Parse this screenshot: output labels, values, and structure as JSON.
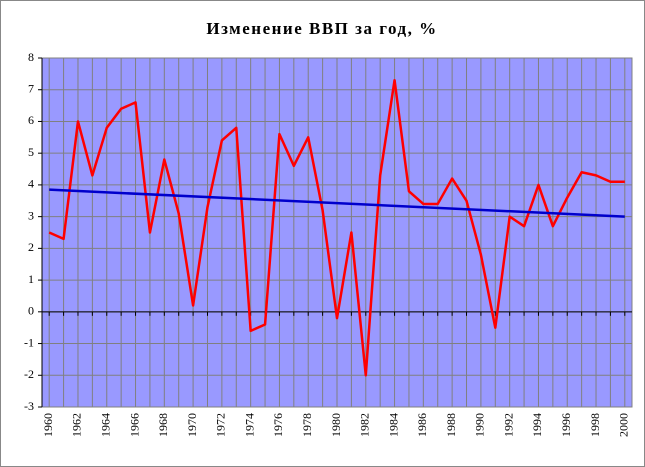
{
  "chart_data": {
    "type": "line",
    "title": "Изменение ВВП за год, %",
    "x": [
      1960,
      1961,
      1962,
      1963,
      1964,
      1965,
      1966,
      1967,
      1968,
      1969,
      1970,
      1971,
      1972,
      1973,
      1974,
      1975,
      1976,
      1977,
      1978,
      1979,
      1980,
      1981,
      1982,
      1983,
      1984,
      1985,
      1986,
      1987,
      1988,
      1989,
      1990,
      1991,
      1992,
      1993,
      1994,
      1995,
      1996,
      1997,
      1998,
      1999,
      2000
    ],
    "series": [
      {
        "color": "#ff0000",
        "values": [
          2.5,
          2.3,
          6.0,
          4.3,
          5.8,
          6.4,
          6.6,
          2.5,
          4.8,
          3.1,
          0.2,
          3.3,
          5.4,
          5.8,
          -0.6,
          -0.4,
          5.6,
          4.6,
          5.5,
          3.2,
          -0.2,
          2.5,
          -2.0,
          4.3,
          7.3,
          3.8,
          3.4,
          3.4,
          4.2,
          3.5,
          1.8,
          -0.5,
          3.0,
          2.7,
          4.0,
          2.7,
          3.6,
          4.4,
          4.3,
          4.1,
          4.1
        ]
      },
      {
        "color": "#0000cc",
        "x": [
          1960,
          2000
        ],
        "values": [
          3.85,
          3.0
        ]
      }
    ],
    "xlim": [
      1959.5,
      2000.5
    ],
    "xticks": [
      1960,
      1962,
      1964,
      1966,
      1968,
      1970,
      1972,
      1974,
      1976,
      1978,
      1980,
      1982,
      1984,
      1986,
      1988,
      1990,
      1992,
      1994,
      1996,
      1998,
      2000
    ],
    "ylim": [
      -3,
      8
    ],
    "yticks": [
      -3,
      -2,
      -1,
      0,
      1,
      2,
      3,
      4,
      5,
      6,
      7,
      8
    ],
    "grid": true,
    "background": "#9999ff"
  }
}
